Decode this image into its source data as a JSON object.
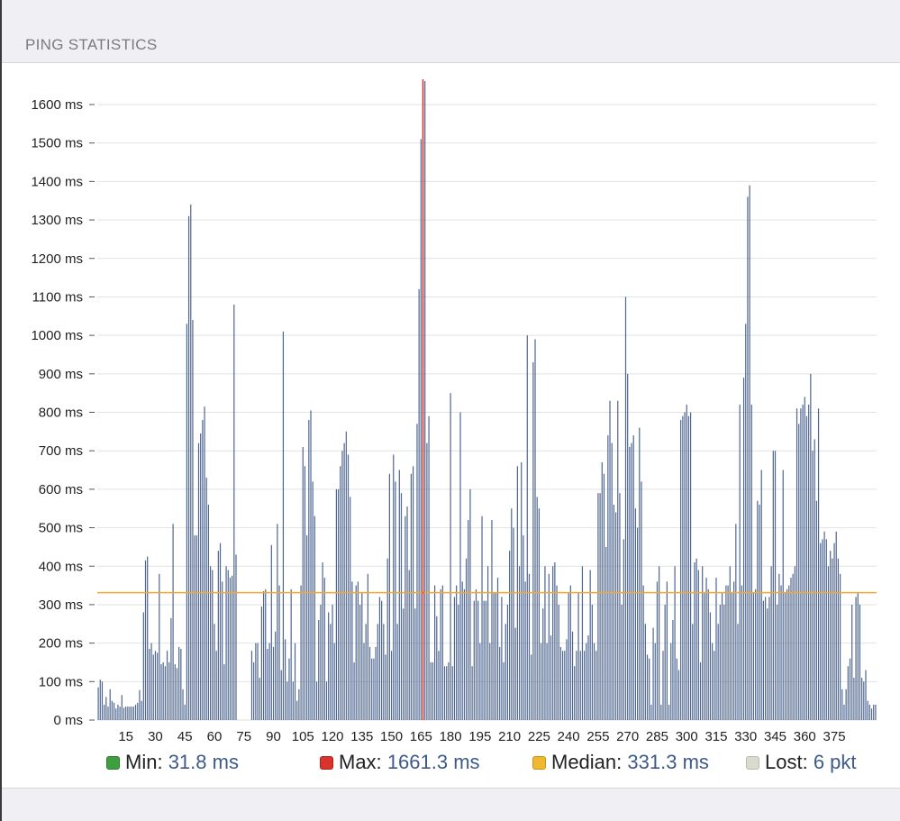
{
  "header": {
    "title": "PING STATISTICS"
  },
  "colors": {
    "bar": "#4f6690",
    "grid": "#e2e2e2",
    "max_line": "#d9332b",
    "median_line": "#f0a830",
    "axis_text": "#222222"
  },
  "legend": {
    "min": {
      "label": "Min:",
      "value": "31.8 ms",
      "color": "#3f9e3f"
    },
    "max": {
      "label": "Max:",
      "value": "1661.3 ms",
      "color": "#d9332b"
    },
    "median": {
      "label": "Median:",
      "value": "331.3 ms",
      "color": "#f0b830"
    },
    "lost": {
      "label": "Lost:",
      "value": "6 pkt",
      "color": "#d8dcd0"
    }
  },
  "chart_data": {
    "type": "bar",
    "ylim": [
      0,
      1660
    ],
    "y_ticks": [
      0,
      100,
      200,
      300,
      400,
      500,
      600,
      700,
      800,
      900,
      1000,
      1100,
      1200,
      1300,
      1400,
      1500,
      1600
    ],
    "y_tick_labels": [
      "0 ms",
      "100 ms",
      "200 ms",
      "300 ms",
      "400 ms",
      "500 ms",
      "600 ms",
      "700 ms",
      "800 ms",
      "900 ms",
      "1000 ms",
      "1100 ms",
      "1200 ms",
      "1300 ms",
      "1400 ms",
      "1500 ms",
      "1600 ms"
    ],
    "x_ticks": [
      15,
      30,
      45,
      60,
      75,
      90,
      105,
      120,
      135,
      150,
      165,
      180,
      195,
      210,
      225,
      240,
      255,
      270,
      285,
      300,
      315,
      330,
      345,
      360,
      375
    ],
    "x_tick_labels": [
      "15",
      "30",
      "45",
      "60",
      "75",
      "90",
      "105",
      "120",
      "135",
      "150",
      "165",
      "180",
      "195",
      "210",
      "225",
      "240",
      "255",
      "270",
      "285",
      "300",
      "315",
      "330",
      "345",
      "360",
      "375"
    ],
    "x_range": [
      1,
      378
    ],
    "grid": true,
    "median": 331.3,
    "max_index": 166,
    "max_value": 1661.3,
    "lost_indices": [
      72,
      73,
      74,
      75,
      76,
      77
    ],
    "values": [
      85,
      105,
      100,
      40,
      60,
      35,
      80,
      50,
      45,
      30,
      40,
      35,
      65,
      32,
      35,
      35,
      35,
      35,
      35,
      40,
      45,
      78,
      50,
      280,
      415,
      425,
      185,
      200,
      170,
      180,
      175,
      380,
      145,
      150,
      140,
      180,
      150,
      265,
      510,
      145,
      135,
      190,
      185,
      80,
      40,
      1030,
      1310,
      1340,
      1040,
      480,
      480,
      720,
      745,
      780,
      815,
      630,
      560,
      400,
      390,
      250,
      180,
      440,
      460,
      360,
      145,
      400,
      390,
      370,
      375,
      1080,
      430,
      200,
      0,
      0,
      0,
      0,
      0,
      0,
      180,
      150,
      200,
      200,
      110,
      295,
      335,
      340,
      185,
      200,
      455,
      190,
      230,
      510,
      350,
      130,
      1010,
      210,
      100,
      160,
      340,
      100,
      200,
      50,
      80,
      350,
      710,
      660,
      480,
      780,
      805,
      620,
      530,
      100,
      260,
      300,
      410,
      370,
      100,
      280,
      250,
      300,
      200,
      600,
      600,
      660,
      700,
      720,
      750,
      690,
      580,
      360,
      150,
      350,
      360,
      300,
      330,
      200,
      250,
      380,
      190,
      160,
      160,
      190,
      250,
      320,
      310,
      250,
      170,
      420,
      640,
      180,
      690,
      620,
      250,
      650,
      590,
      290,
      530,
      555,
      390,
      640,
      660,
      290,
      770,
      1120,
      1510,
      1640,
      1661,
      720,
      790,
      150,
      150,
      350,
      270,
      180,
      340,
      350,
      140,
      140,
      150,
      850,
      140,
      320,
      350,
      300,
      800,
      360,
      340,
      420,
      520,
      600,
      140,
      310,
      340,
      310,
      200,
      530,
      310,
      310,
      400,
      200,
      520,
      330,
      330,
      370,
      190,
      320,
      150,
      250,
      300,
      440,
      550,
      500,
      240,
      660,
      400,
      670,
      480,
      360,
      1000,
      380,
      170,
      930,
      990,
      580,
      550,
      200,
      290,
      400,
      200,
      380,
      220,
      400,
      410,
      350,
      300,
      190,
      180,
      180,
      210,
      330,
      350,
      230,
      140,
      180,
      330,
      180,
      400,
      180,
      200,
      220,
      390,
      300,
      200,
      180,
      590,
      590,
      670,
      640,
      450,
      740,
      830,
      720,
      560,
      540,
      830,
      590,
      300,
      470,
      1100,
      900,
      710,
      720,
      740,
      550,
      500,
      760,
      620,
      350,
      250,
      170,
      160,
      40,
      240,
      200,
      360,
      400,
      40,
      180,
      300,
      360,
      40,
      200,
      260,
      400,
      160,
      130,
      780,
      790,
      800,
      820,
      790,
      800,
      250,
      410,
      420,
      390,
      150,
      400,
      330,
      370,
      340,
      280,
      200,
      180,
      370,
      250,
      300,
      330,
      300,
      350,
      350,
      400,
      330,
      360,
      510,
      250,
      820,
      350,
      890,
      1030,
      1360,
      1390,
      820,
      330,
      340,
      570,
      560,
      650,
      310,
      320,
      290,
      320,
      400,
      700,
      700,
      300,
      380,
      350,
      650,
      330,
      340,
      350,
      370,
      380,
      400,
      810,
      770,
      810,
      820,
      840,
      790,
      820,
      900,
      700,
      730,
      570,
      810,
      460,
      470,
      490,
      470,
      400,
      440,
      420,
      460,
      490,
      420,
      380,
      80,
      40,
      80,
      140,
      160,
      300,
      110,
      320,
      330,
      300,
      110,
      100,
      130,
      50,
      40,
      30,
      40,
      40
    ]
  }
}
